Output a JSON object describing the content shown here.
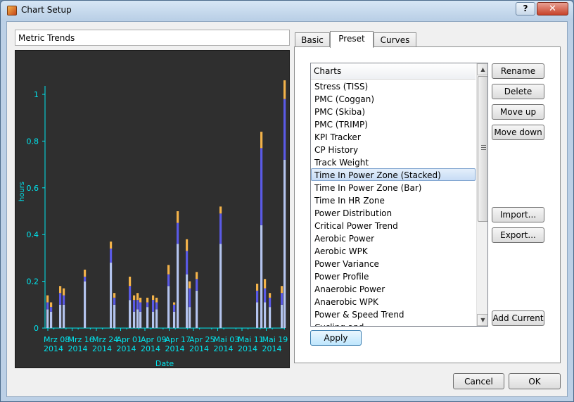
{
  "window": {
    "title": "Chart Setup",
    "help_label": "?",
    "close_label": "✕"
  },
  "chart_title_field": {
    "value": "Metric Trends"
  },
  "tabs": [
    {
      "label": "Basic",
      "active": false
    },
    {
      "label": "Preset",
      "active": true
    },
    {
      "label": "Curves",
      "active": false
    }
  ],
  "charts_list": {
    "header": "Charts",
    "items": [
      "Stress (TISS)",
      "PMC (Coggan)",
      "PMC (Skiba)",
      "PMC (TRIMP)",
      "KPI Tracker",
      "CP History",
      "Track Weight",
      "Time In Power Zone (Stacked)",
      "Time In Power Zone (Bar)",
      "Time In HR Zone",
      "Power Distribution",
      "Critical Power Trend",
      "Aerobic Power",
      "Aerobic WPK",
      "Power Variance",
      "Power Profile",
      "Anaerobic Power",
      "Anaerobic WPK",
      "Power & Speed Trend",
      "Cycling and ..."
    ],
    "selected_index": 7
  },
  "side_buttons": {
    "rename": "Rename",
    "delete": "Delete",
    "move_up": "Move up",
    "move_down": "Move down",
    "import": "Import...",
    "export": "Export...",
    "add_current": "Add Current"
  },
  "apply_label": "Apply",
  "dialog_buttons": {
    "cancel": "Cancel",
    "ok": "OK"
  },
  "colors": {
    "axis": "#00e5ee",
    "series_light": "#b4c4ee",
    "series_blue": "#5a5ae6",
    "series_orange": "#f2b24a",
    "chart_bg": "#2f2f2f"
  },
  "chart_data": {
    "type": "bar",
    "stacked": true,
    "ylabel": "hours",
    "xlabel": "Date",
    "ylim": [
      0,
      1
    ],
    "y_ticks": [
      "0",
      "0.2",
      "0.4",
      "0.6",
      "0.8",
      "1"
    ],
    "x_ticks": [
      [
        "Mrz 08",
        "2014"
      ],
      [
        "Mrz 16",
        "2014"
      ],
      [
        "Mrz 24",
        "2014"
      ],
      [
        "Apr 01",
        "2014"
      ],
      [
        "Apr 09",
        "2014"
      ],
      [
        "Apr 17",
        "2014"
      ],
      [
        "Apr 25",
        "2014"
      ],
      [
        "Mai 03",
        "2014"
      ],
      [
        "Mai 11",
        "2014"
      ],
      [
        "Mai 19",
        "2014"
      ]
    ],
    "bars": [
      [
        0.08,
        0.03,
        0.03
      ],
      [
        0.07,
        0.02,
        0.02
      ],
      [
        0.1,
        0.05,
        0.03
      ],
      [
        0.1,
        0.04,
        0.03
      ],
      [
        0.2,
        0.02,
        0.03
      ],
      [
        0.28,
        0.06,
        0.03
      ],
      [
        0.1,
        0.03,
        0.02
      ],
      [
        0.12,
        0.06,
        0.04
      ],
      [
        0.07,
        0.05,
        0.02
      ],
      [
        0.08,
        0.04,
        0.03
      ],
      [
        0.07,
        0.04,
        0.02
      ],
      [
        0.09,
        0.02,
        0.02
      ],
      [
        0.07,
        0.05,
        0.02
      ],
      [
        0.08,
        0.03,
        0.02
      ],
      [
        0.18,
        0.05,
        0.04
      ],
      [
        0.07,
        0.03,
        0.01
      ],
      [
        0.36,
        0.09,
        0.05
      ],
      [
        0.23,
        0.1,
        0.05
      ],
      [
        0.09,
        0.08,
        0.03
      ],
      [
        0.16,
        0.05,
        0.03
      ],
      [
        0.36,
        0.13,
        0.03
      ],
      [
        0.11,
        0.05,
        0.03
      ],
      [
        0.44,
        0.33,
        0.07
      ],
      [
        0.11,
        0.06,
        0.04
      ],
      [
        0.09,
        0.04,
        0.02
      ],
      [
        0.1,
        0.05,
        0.03
      ],
      [
        0.72,
        0.26,
        0.08
      ]
    ]
  }
}
